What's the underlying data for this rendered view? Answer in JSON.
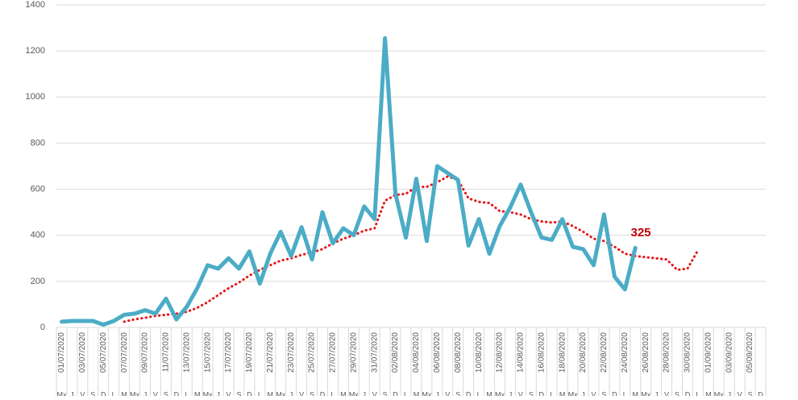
{
  "chart_data": {
    "type": "line",
    "categories": [
      "01/07/2020",
      null,
      "03/07/2020",
      null,
      "05/07/2020",
      null,
      "07/07/2020",
      null,
      "09/07/2020",
      null,
      "11/07/2020",
      null,
      "13/07/2020",
      null,
      "15/07/2020",
      null,
      "17/07/2020",
      null,
      "19/07/2020",
      null,
      "21/07/2020",
      null,
      "23/07/2020",
      null,
      "25/07/2020",
      null,
      "27/07/2020",
      null,
      "29/07/2020",
      null,
      "31/07/2020",
      null,
      "02/08/2020",
      null,
      "04/08/2020",
      null,
      "06/08/2020",
      null,
      "08/08/2020",
      null,
      "10/08/2020",
      null,
      "12/08/2020",
      null,
      "14/08/2020",
      null,
      "16/08/2020",
      null,
      "18/08/2020",
      null,
      "20/08/2020",
      null,
      "22/08/2020",
      null,
      "24/08/2020",
      null,
      "26/08/2020",
      null,
      "28/08/2020",
      null,
      "30/08/2020",
      null,
      "01/09/2020",
      null,
      "03/09/2020",
      null,
      "05/09/2020",
      null
    ],
    "weekdays": [
      "Mx",
      "J",
      "V",
      "S",
      "D",
      "L",
      "M",
      "Mx",
      "J",
      "V",
      "S",
      "D",
      "L",
      "M",
      "Mx",
      "J",
      "V",
      "S",
      "D",
      "L",
      "M",
      "Mx",
      "J",
      "V",
      "S",
      "D",
      "L",
      "M",
      "Mx",
      "J",
      "V",
      "S",
      "D",
      "L",
      "M",
      "Mx",
      "J",
      "V",
      "S",
      "D",
      "L",
      "M",
      "Mx",
      "J",
      "V",
      "S",
      "D",
      "L",
      "M",
      "Mx",
      "J",
      "V",
      "S",
      "D",
      "L",
      "M",
      "Mx",
      "J",
      "V",
      "S",
      "D",
      "L",
      "M",
      "Mx",
      "J",
      "V",
      "S",
      "D"
    ],
    "series": [
      {
        "color": "#4bacc6",
        "style": "solid",
        "values": [
          25,
          28,
          28,
          28,
          12,
          28,
          55,
          60,
          75,
          60,
          125,
          35,
          90,
          170,
          270,
          255,
          300,
          255,
          330,
          190,
          320,
          415,
          310,
          435,
          295,
          500,
          365,
          430,
          400,
          525,
          470,
          1255,
          580,
          390,
          645,
          375,
          700,
          670,
          640,
          355,
          470,
          320,
          440,
          520,
          620,
          500,
          390,
          380,
          470,
          350,
          340,
          270,
          490,
          220,
          165,
          345,
          null,
          null,
          null,
          null,
          null,
          null,
          null,
          null,
          null,
          null,
          null,
          null
        ]
      },
      {
        "color": "#e31a1c",
        "style": "dotted",
        "values": [
          null,
          null,
          null,
          null,
          null,
          null,
          25,
          35,
          42,
          50,
          55,
          60,
          68,
          85,
          110,
          140,
          170,
          195,
          225,
          250,
          270,
          290,
          300,
          315,
          325,
          340,
          365,
          385,
          400,
          420,
          430,
          550,
          575,
          580,
          610,
          610,
          630,
          655,
          640,
          560,
          545,
          540,
          505,
          500,
          490,
          470,
          460,
          455,
          460,
          440,
          415,
          385,
          375,
          350,
          320,
          310,
          305,
          300,
          295,
          250,
          255,
          335,
          null,
          null,
          null,
          null,
          null,
          null
        ]
      }
    ],
    "annotation": "325",
    "ylim": [
      0,
      1400
    ],
    "yticks": [
      0,
      200,
      400,
      600,
      800,
      1000,
      1200,
      1400
    ],
    "grid": true
  }
}
